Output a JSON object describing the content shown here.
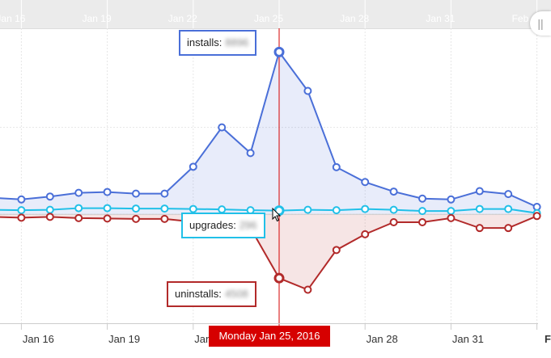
{
  "chart_data": {
    "type": "line",
    "x": [
      "Jan 15",
      "Jan 16",
      "Jan 17",
      "Jan 18",
      "Jan 19",
      "Jan 20",
      "Jan 21",
      "Jan 22",
      "Jan 23",
      "Jan 24",
      "Jan 25",
      "Jan 26",
      "Jan 27",
      "Jan 28",
      "Jan 29",
      "Jan 30",
      "Jan 31",
      "Feb 1",
      "Feb 2",
      "Feb 3"
    ],
    "top_ticks": [
      "Jan 16",
      "Jan 19",
      "Jan 22",
      "Jan 25",
      "Jan 28",
      "Jan 31",
      "Feb"
    ],
    "bottom_ticks": [
      "Jan 16",
      "Jan 19",
      "Jan 22",
      "Jan 28",
      "Jan 31",
      "Feb"
    ],
    "series": [
      {
        "name": "installs",
        "color": "#4a6fd8",
        "values": [
          4,
          3.6,
          4.3,
          5.2,
          5.4,
          5.0,
          5.0,
          11.5,
          21.0,
          14.8,
          39.2,
          29.8,
          11.4,
          7.8,
          5.5,
          3.8,
          3.6,
          5.6,
          4.9,
          1.8
        ]
      },
      {
        "name": "upgrades",
        "color": "#21c0e8",
        "values": [
          1.1,
          1.0,
          1.1,
          1.5,
          1.5,
          1.4,
          1.4,
          1.3,
          1.2,
          1.0,
          0.9,
          1.1,
          1.0,
          1.3,
          1.1,
          0.8,
          0.8,
          1.3,
          1.3,
          0.3
        ]
      },
      {
        "name": "uninstalls",
        "color": "#b22a2a",
        "values": [
          -0.6,
          -0.8,
          -0.6,
          -0.9,
          -1.0,
          -1.1,
          -1.1,
          -1.8,
          -2.2,
          -3.3,
          -15.4,
          -18.2,
          -8.6,
          -4.8,
          -1.9,
          -1.9,
          -0.9,
          -3.3,
          -3.3,
          -0.4
        ]
      }
    ],
    "ylim": [
      -22,
      42
    ],
    "highlight_date": "Jan 25",
    "grid": true
  },
  "tooltips": {
    "installs": {
      "label": "installs:",
      "value": "8896"
    },
    "upgrades": {
      "label": "upgrades:",
      "value": "296"
    },
    "uninstalls": {
      "label": "uninstalls:",
      "value": "4508"
    }
  },
  "date_badge": "Monday Jan 25, 2016",
  "scroll_handle": "||"
}
